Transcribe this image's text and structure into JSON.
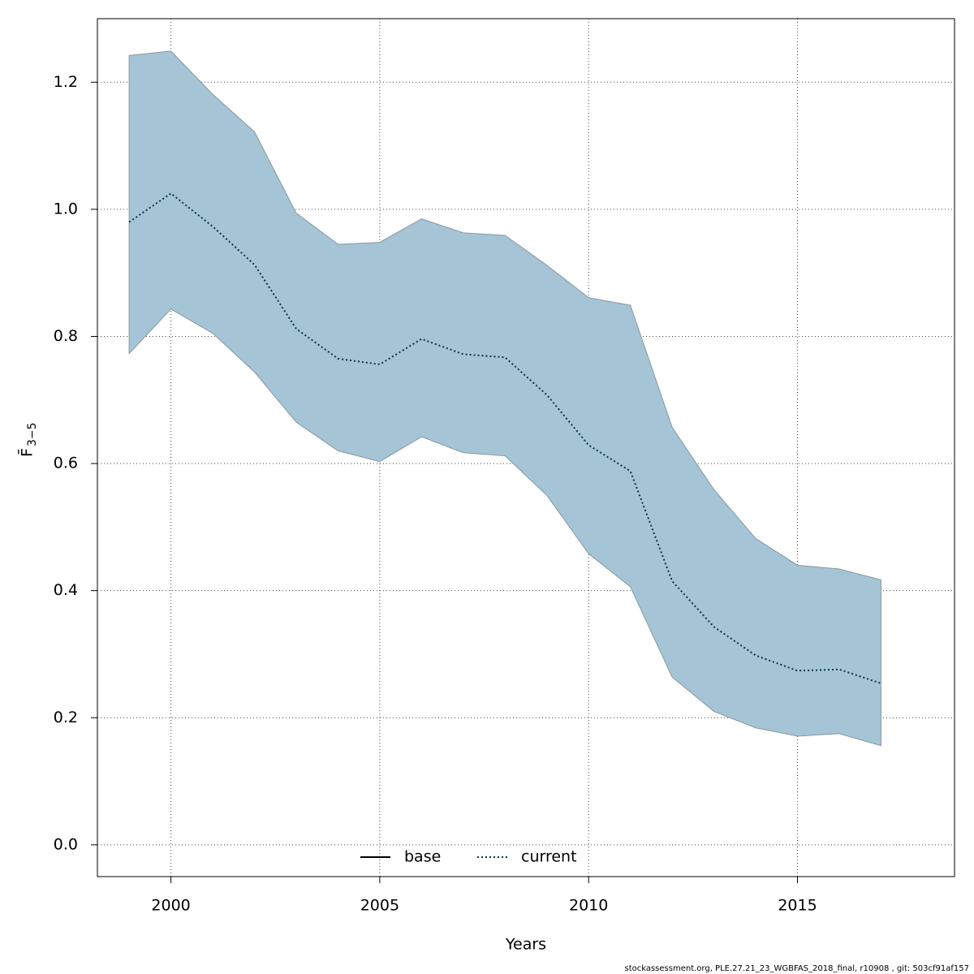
{
  "chart_data": {
    "type": "line",
    "xlabel": "Years",
    "ylabel": "F̄",
    "ylabel_sub": "3−5",
    "footer": "stockassessment.org, PLE.27.21_23_WGBFAS_2018_final, r10908 , git: 503cf91af157",
    "x": [
      1999,
      2000,
      2001,
      2002,
      2003,
      2004,
      2005,
      2006,
      2007,
      2008,
      2009,
      2010,
      2011,
      2012,
      2013,
      2014,
      2015,
      2016,
      2017
    ],
    "series": [
      {
        "name": "base",
        "color": "#000000",
        "dash": "solid"
      },
      {
        "name": "current",
        "color": "#00334d",
        "dash": "dotted",
        "values": [
          0.98,
          1.025,
          0.973,
          0.913,
          0.812,
          0.765,
          0.756,
          0.796,
          0.772,
          0.767,
          0.708,
          0.629,
          0.588,
          0.415,
          0.343,
          0.298,
          0.274,
          0.276,
          0.254
        ],
        "upper": [
          1.242,
          1.249,
          1.181,
          1.122,
          0.994,
          0.945,
          0.948,
          0.985,
          0.963,
          0.959,
          0.912,
          0.861,
          0.849,
          0.657,
          0.559,
          0.482,
          0.44,
          0.434,
          0.417
        ],
        "lower": [
          0.773,
          0.843,
          0.805,
          0.744,
          0.665,
          0.62,
          0.603,
          0.642,
          0.617,
          0.612,
          0.55,
          0.458,
          0.406,
          0.264,
          0.21,
          0.184,
          0.171,
          0.175,
          0.156
        ],
        "band_color": "#a5c4d5"
      }
    ],
    "xlim": [
      1998.24,
      2018.76
    ],
    "ylim": [
      -0.05,
      1.3
    ],
    "xticks": [
      2000,
      2005,
      2010,
      2015
    ],
    "yticks": [
      {
        "value": 0,
        "label": "0.0"
      },
      0.2,
      0.4,
      0.6,
      0.8,
      {
        "value": 1,
        "label": "1.0"
      },
      1.2
    ],
    "grid": true,
    "legend": "bottom"
  }
}
